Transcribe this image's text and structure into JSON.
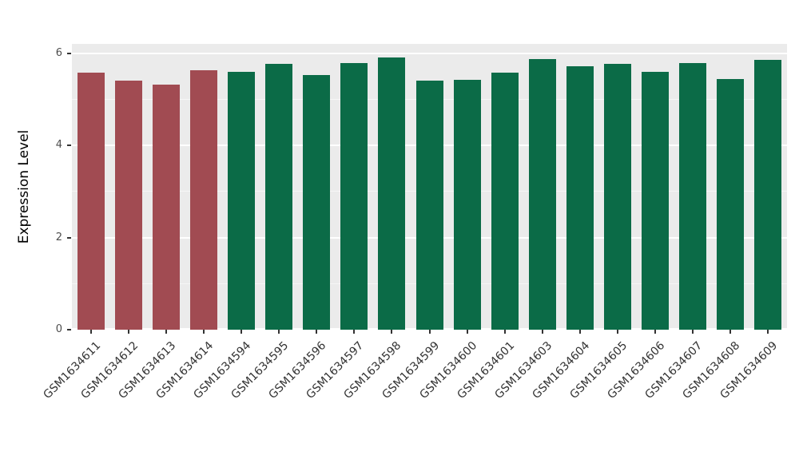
{
  "chart_data": {
    "type": "bar",
    "title": "",
    "xlabel": "",
    "ylabel": "Expression Level",
    "ylim": [
      0,
      6.2
    ],
    "yticks_major": [
      0,
      2,
      4,
      6
    ],
    "yticks_minor": [
      1,
      3,
      5
    ],
    "grid": true,
    "legend_position": "none",
    "panel_background": "#EBEBEB",
    "gridline_color": "#FFFFFF",
    "group_colors": {
      "red": "#A14B52",
      "green": "#0B6B47"
    },
    "categories": [
      "GSM1634611",
      "GSM1634612",
      "GSM1634613",
      "GSM1634614",
      "GSM1634594",
      "GSM1634595",
      "GSM1634596",
      "GSM1634597",
      "GSM1634598",
      "GSM1634599",
      "GSM1634600",
      "GSM1634601",
      "GSM1634603",
      "GSM1634604",
      "GSM1634605",
      "GSM1634606",
      "GSM1634607",
      "GSM1634608",
      "GSM1634609"
    ],
    "values": [
      5.57,
      5.4,
      5.32,
      5.62,
      5.6,
      5.76,
      5.52,
      5.78,
      5.9,
      5.4,
      5.42,
      5.57,
      5.87,
      5.71,
      5.77,
      5.6,
      5.78,
      5.43,
      5.86
    ],
    "groups": [
      "red",
      "red",
      "red",
      "red",
      "green",
      "green",
      "green",
      "green",
      "green",
      "green",
      "green",
      "green",
      "green",
      "green",
      "green",
      "green",
      "green",
      "green",
      "green"
    ]
  }
}
